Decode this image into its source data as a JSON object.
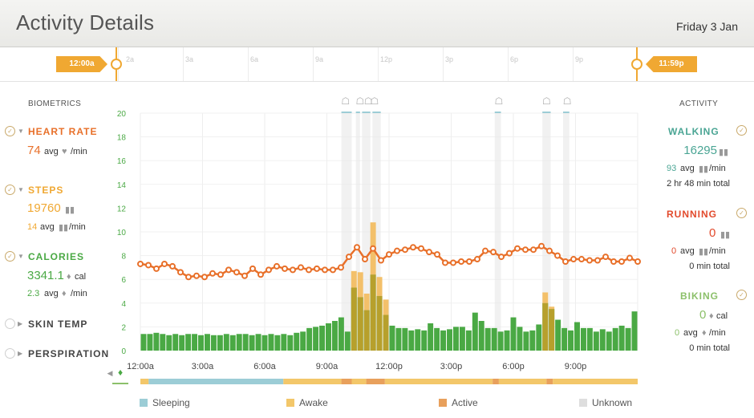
{
  "header": {
    "title": "Activity Details",
    "date": "Friday 3 Jan"
  },
  "timeline": {
    "labels": [
      "2a",
      "3a",
      "6a",
      "9a",
      "12p",
      "3p",
      "6p",
      "9p"
    ],
    "start_flag": "12:00a",
    "end_flag": "11:59p"
  },
  "biometrics": {
    "heading": "BIOMETRICS",
    "heart_rate": {
      "name": "HEART RATE",
      "value": "74",
      "avg_text": "avg",
      "unit": "/min"
    },
    "steps": {
      "name": "STEPS",
      "value": "19760",
      "avg_value": "14",
      "avg_text": "avg",
      "unit": "/min"
    },
    "calories": {
      "name": "CALORIES",
      "value": "3341.1",
      "value_unit": "cal",
      "avg_value": "2.3",
      "avg_text": "avg",
      "unit": "/min"
    },
    "skin_temp": {
      "name": "SKIN TEMP"
    },
    "perspiration": {
      "name": "PERSPIRATION"
    }
  },
  "activity": {
    "heading": "ACTIVITY",
    "walking": {
      "name": "WALKING",
      "value": "16295",
      "avg": "93",
      "avg_text": "avg",
      "unit": "/min",
      "total": "2 hr 48 min total"
    },
    "running": {
      "name": "RUNNING",
      "value": "0",
      "avg": "0",
      "avg_text": "avg",
      "unit": "/min",
      "total": "0 min total"
    },
    "biking": {
      "name": "BIKING",
      "value": "0",
      "value_unit": "cal",
      "avg": "0",
      "avg_text": "avg",
      "unit": "/min",
      "total": "0 min total"
    }
  },
  "legend": [
    {
      "label": "Sleeping",
      "color": "#9ccdd6"
    },
    {
      "label": "Awake",
      "color": "#f3c76a"
    },
    {
      "label": "Active",
      "color": "#e8a05c"
    },
    {
      "label": "Unknown",
      "color": "#dedede"
    }
  ],
  "colors": {
    "orange": "#e8702a",
    "steps": "#f0a832",
    "green": "#4aa944",
    "teal": "#4aa594",
    "red": "#e24a2c",
    "olive": "#b7a02c"
  },
  "chart_data": {
    "type": "bar",
    "yticks": [
      "0",
      "2",
      "4",
      "6",
      "8",
      "10",
      "12",
      "14",
      "16",
      "18",
      "20"
    ],
    "ylim": [
      0,
      20
    ],
    "xticks": [
      "12:00a",
      "3:00a",
      "6:00a",
      "9:00a",
      "12:00p",
      "3:00p",
      "6:00p",
      "9:00p"
    ],
    "xlim_hours": [
      0,
      24
    ],
    "calories_per_min": [
      1.4,
      1.4,
      1.5,
      1.4,
      1.3,
      1.4,
      1.3,
      1.4,
      1.4,
      1.3,
      1.4,
      1.3,
      1.3,
      1.4,
      1.3,
      1.4,
      1.4,
      1.3,
      1.4,
      1.3,
      1.4,
      1.3,
      1.4,
      1.3,
      1.5,
      1.6,
      1.9,
      2.0,
      2.1,
      2.3,
      2.5,
      2.8,
      1.6,
      5.3,
      4.5,
      3.4,
      6.4,
      4.6,
      3.0,
      2.1,
      1.9,
      1.9,
      1.7,
      1.8,
      1.7,
      2.3,
      1.9,
      1.7,
      1.8,
      2.0,
      2.0,
      1.7,
      3.2,
      2.5,
      1.9,
      1.9,
      1.6,
      1.7,
      2.8,
      2.0,
      1.6,
      1.7,
      2.2,
      4.0,
      3.5,
      2.6,
      1.9,
      1.7,
      2.4,
      1.9,
      1.9,
      1.6,
      1.8,
      1.6,
      1.9,
      2.1,
      1.9,
      3.3
    ],
    "active_overlay": [
      0,
      0,
      0,
      0,
      0,
      0,
      0,
      0,
      0,
      0,
      0,
      0,
      0,
      0,
      0,
      0,
      0,
      0,
      0,
      0,
      0,
      0,
      0,
      0,
      0,
      0,
      0,
      0,
      0,
      0,
      0,
      0,
      0,
      1.4,
      2.1,
      1.4,
      4.4,
      1.6,
      1.3,
      0,
      0,
      0,
      0,
      0,
      0,
      0,
      0,
      0,
      0,
      0,
      0,
      0,
      0,
      0,
      0,
      0,
      0,
      0,
      0,
      0,
      0,
      0,
      0,
      0.9,
      0.2,
      0,
      0,
      0,
      0,
      0,
      0,
      0,
      0,
      0,
      0,
      0,
      0,
      0
    ],
    "heart_rate_series": [
      7.3,
      7.2,
      6.9,
      7.3,
      7.1,
      6.6,
      6.2,
      6.3,
      6.2,
      6.5,
      6.4,
      6.8,
      6.6,
      6.3,
      6.9,
      6.4,
      6.8,
      7.1,
      6.9,
      6.8,
      7.0,
      6.8,
      6.9,
      6.8,
      6.8,
      7.0,
      7.9,
      8.7,
      7.7,
      8.6,
      7.6,
      8.1,
      8.4,
      8.5,
      8.7,
      8.6,
      8.3,
      8.1,
      7.4,
      7.4,
      7.5,
      7.5,
      7.7,
      8.4,
      8.3,
      7.9,
      8.2,
      8.6,
      8.5,
      8.5,
      8.8,
      8.4,
      8.0,
      7.5,
      7.7,
      7.7,
      7.6,
      7.6,
      7.9,
      7.5,
      7.5,
      7.8,
      7.5
    ],
    "activity_icon_hours": [
      9.9,
      10.6,
      11.0,
      11.3,
      17.3,
      19.6,
      20.6
    ],
    "walking_bands_hours": [
      [
        9.7,
        10.2
      ],
      [
        10.4,
        10.6
      ],
      [
        10.7,
        11.1
      ],
      [
        11.2,
        11.6
      ],
      [
        17.1,
        17.4
      ],
      [
        19.4,
        19.8
      ],
      [
        20.4,
        20.7
      ]
    ],
    "state_bar": [
      {
        "state": "Awake",
        "from": 0,
        "to": 0.4
      },
      {
        "state": "Sleeping",
        "from": 0.4,
        "to": 6.9
      },
      {
        "state": "Awake",
        "from": 6.9,
        "to": 9.7
      },
      {
        "state": "Active",
        "from": 9.7,
        "to": 10.2
      },
      {
        "state": "Awake",
        "from": 10.2,
        "to": 10.9
      },
      {
        "state": "Active",
        "from": 10.9,
        "to": 11.8
      },
      {
        "state": "Awake",
        "from": 11.8,
        "to": 17.0
      },
      {
        "state": "Active",
        "from": 17.0,
        "to": 17.3
      },
      {
        "state": "Awake",
        "from": 17.3,
        "to": 19.6
      },
      {
        "state": "Active",
        "from": 19.6,
        "to": 19.9
      },
      {
        "state": "Awake",
        "from": 19.9,
        "to": 24
      }
    ]
  }
}
